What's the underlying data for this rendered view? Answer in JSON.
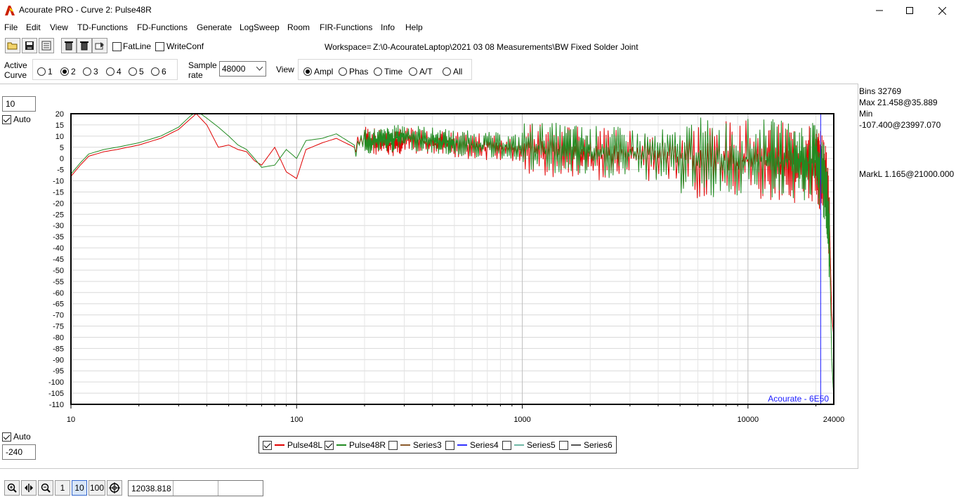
{
  "window": {
    "title": "Acourate PRO - Curve 2: Pulse48R",
    "minimize_icon": "minimize-icon",
    "maximize_icon": "maximize-icon",
    "close_icon": "close-icon"
  },
  "menu": [
    "File",
    "Edit",
    "View",
    "TD-Functions",
    "FD-Functions",
    "Generate",
    "LogSweep",
    "Room",
    "FIR-Functions",
    "Info",
    "Help"
  ],
  "toolbar": {
    "fatline_label": "FatLine",
    "fatline_checked": false,
    "writeconf_label": "WriteConf",
    "writeconf_checked": false,
    "workspace_prefix": "Workspace=",
    "workspace_path": "Z:\\0-AcourateLaptop\\2021 03 08 Measurements\\BW Fixed Solder Joint"
  },
  "options": {
    "active_curve_label_1": "Active",
    "active_curve_label_2": "Curve",
    "curves": [
      "1",
      "2",
      "3",
      "4",
      "5",
      "6"
    ],
    "active_curve": "2",
    "sample_rate_label_1": "Sample",
    "sample_rate_label_2": "rate",
    "sample_rate": "48000",
    "view_label": "View",
    "views": [
      "Ampl",
      "Phas",
      "Time",
      "A/T",
      "All"
    ],
    "active_view": "Ampl"
  },
  "left_controls": {
    "top_value": "10",
    "top_auto_label": "Auto",
    "top_auto_checked": true,
    "bottom_auto_label": "Auto",
    "bottom_auto_checked": true,
    "bottom_value": "-240"
  },
  "info_panel": {
    "bins": "Bins 32769",
    "max": "Max 21.458@35.889",
    "min": "Min -107.400@23997.070",
    "markl": "MarkL 1.165@21000.000"
  },
  "chart_data": {
    "type": "line",
    "x_scale": "log",
    "xlim": [
      10,
      24000
    ],
    "ylim": [
      -110,
      20
    ],
    "x_ticks": [
      "10",
      "100",
      "1000",
      "10000",
      "24000"
    ],
    "y_ticks": [
      20,
      15,
      10,
      5,
      0,
      -5,
      -10,
      -15,
      -20,
      -25,
      -30,
      -35,
      -40,
      -45,
      -50,
      -55,
      -60,
      -65,
      -70,
      -75,
      -80,
      -85,
      -90,
      -95,
      -100,
      -105,
      -110
    ],
    "grid": true,
    "marker_x": 21000,
    "watermark": "Acourate - 6E50",
    "series": [
      {
        "name": "Pulse48L",
        "color": "#e00000",
        "x": [
          10,
          11,
          12,
          14,
          16,
          20,
          25,
          30,
          35.9,
          40,
          45,
          50,
          55,
          60,
          65,
          70,
          80,
          90,
          100,
          110,
          130,
          150,
          180,
          200,
          250,
          300,
          400,
          500,
          700,
          1000,
          1500,
          2000,
          3000,
          5000,
          8000,
          12000,
          16000,
          20000,
          22000,
          23000,
          23500,
          24000
        ],
        "y": [
          -8,
          -3,
          1,
          3,
          4,
          6,
          9,
          13,
          20,
          15,
          5,
          6,
          4,
          3,
          -1,
          -3,
          5,
          -6,
          -9,
          4,
          7,
          9,
          5,
          9,
          6,
          8,
          7,
          6,
          5,
          4,
          3,
          2,
          1,
          0,
          -1,
          -1,
          -2,
          -3,
          -8,
          -30,
          -70,
          -80
        ]
      },
      {
        "name": "Pulse48R",
        "color": "#228b22",
        "x": [
          10,
          11,
          12,
          14,
          16,
          20,
          25,
          30,
          35.9,
          40,
          45,
          50,
          55,
          60,
          65,
          70,
          80,
          90,
          100,
          110,
          130,
          150,
          180,
          200,
          250,
          300,
          400,
          500,
          700,
          1000,
          1500,
          2000,
          3000,
          5000,
          8000,
          12000,
          16000,
          20000,
          22000,
          23000,
          23500,
          24000
        ],
        "y": [
          -7,
          -2,
          2,
          4,
          5,
          7,
          10,
          14,
          21.458,
          18,
          14,
          10,
          6,
          4,
          0,
          -4,
          -3,
          4,
          0,
          8,
          9,
          11,
          6,
          8,
          8,
          10,
          8,
          7,
          6,
          5,
          4,
          3,
          2,
          1,
          0,
          0,
          -1,
          -2,
          -10,
          -40,
          -90,
          -107.4
        ]
      }
    ]
  },
  "legend": [
    {
      "name": "Pulse48L",
      "checked": true,
      "color": "#e00000"
    },
    {
      "name": "Pulse48R",
      "checked": true,
      "color": "#228b22"
    },
    {
      "name": "Series3",
      "checked": false,
      "color": "#8b5a2b"
    },
    {
      "name": "Series4",
      "checked": false,
      "color": "#3030ff"
    },
    {
      "name": "Series5",
      "checked": false,
      "color": "#6fb7a6"
    },
    {
      "name": "Series6",
      "checked": false,
      "color": "#555555"
    }
  ],
  "bottombar": {
    "btn_1": "1",
    "btn_10": "10",
    "btn_100": "100",
    "cursor_value": "12038.818"
  }
}
